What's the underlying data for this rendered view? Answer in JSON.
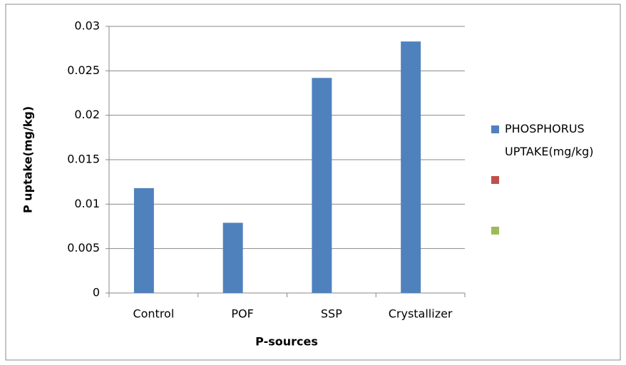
{
  "chart_data": {
    "type": "bar",
    "x_label": "P-sources",
    "y_label": "P uptake(mg/kg)",
    "categories": [
      "Control",
      "POF",
      "SSP",
      "Crystallizer"
    ],
    "series": [
      {
        "name": "PHOSPHORUS UPTAKE(mg/kg)",
        "color": "#4f81bd",
        "values": [
          0.0118,
          0.0079,
          0.0242,
          0.0283
        ]
      },
      {
        "name": null,
        "color": "#c0504d",
        "values": [
          null,
          null,
          null,
          null
        ]
      },
      {
        "name": null,
        "color": "#9bbb59",
        "values": [
          null,
          null,
          null,
          null
        ]
      }
    ],
    "ylim": [
      0,
      0.03
    ],
    "yticks": [
      0,
      0.005,
      0.01,
      0.015,
      0.02,
      0.025,
      0.03
    ],
    "grid": true,
    "legend": "right"
  }
}
